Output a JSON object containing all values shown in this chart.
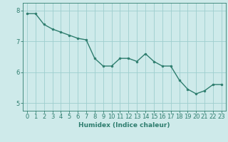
{
  "x": [
    0,
    1,
    2,
    3,
    4,
    5,
    6,
    7,
    8,
    9,
    10,
    11,
    12,
    13,
    14,
    15,
    16,
    17,
    18,
    19,
    20,
    21,
    22,
    23
  ],
  "y": [
    7.9,
    7.9,
    7.55,
    7.4,
    7.3,
    7.2,
    7.1,
    7.05,
    6.45,
    6.2,
    6.2,
    6.45,
    6.45,
    6.35,
    6.6,
    6.35,
    6.2,
    6.2,
    5.75,
    5.45,
    5.3,
    5.4,
    5.6,
    5.6
  ],
  "line_color": "#2e7d6e",
  "marker": "o",
  "marker_size": 2,
  "bg_color": "#ceeaea",
  "grid_color": "#9ecece",
  "axis_color": "#2e7d6e",
  "xlabel": "Humidex (Indice chaleur)",
  "ylabel": "",
  "xlim": [
    -0.5,
    23.5
  ],
  "ylim": [
    4.75,
    8.25
  ],
  "yticks": [
    5,
    6,
    7,
    8
  ],
  "xticks": [
    0,
    1,
    2,
    3,
    4,
    5,
    6,
    7,
    8,
    9,
    10,
    11,
    12,
    13,
    14,
    15,
    16,
    17,
    18,
    19,
    20,
    21,
    22,
    23
  ],
  "xlabel_fontsize": 6.5,
  "tick_fontsize": 6,
  "line_width": 1.0
}
